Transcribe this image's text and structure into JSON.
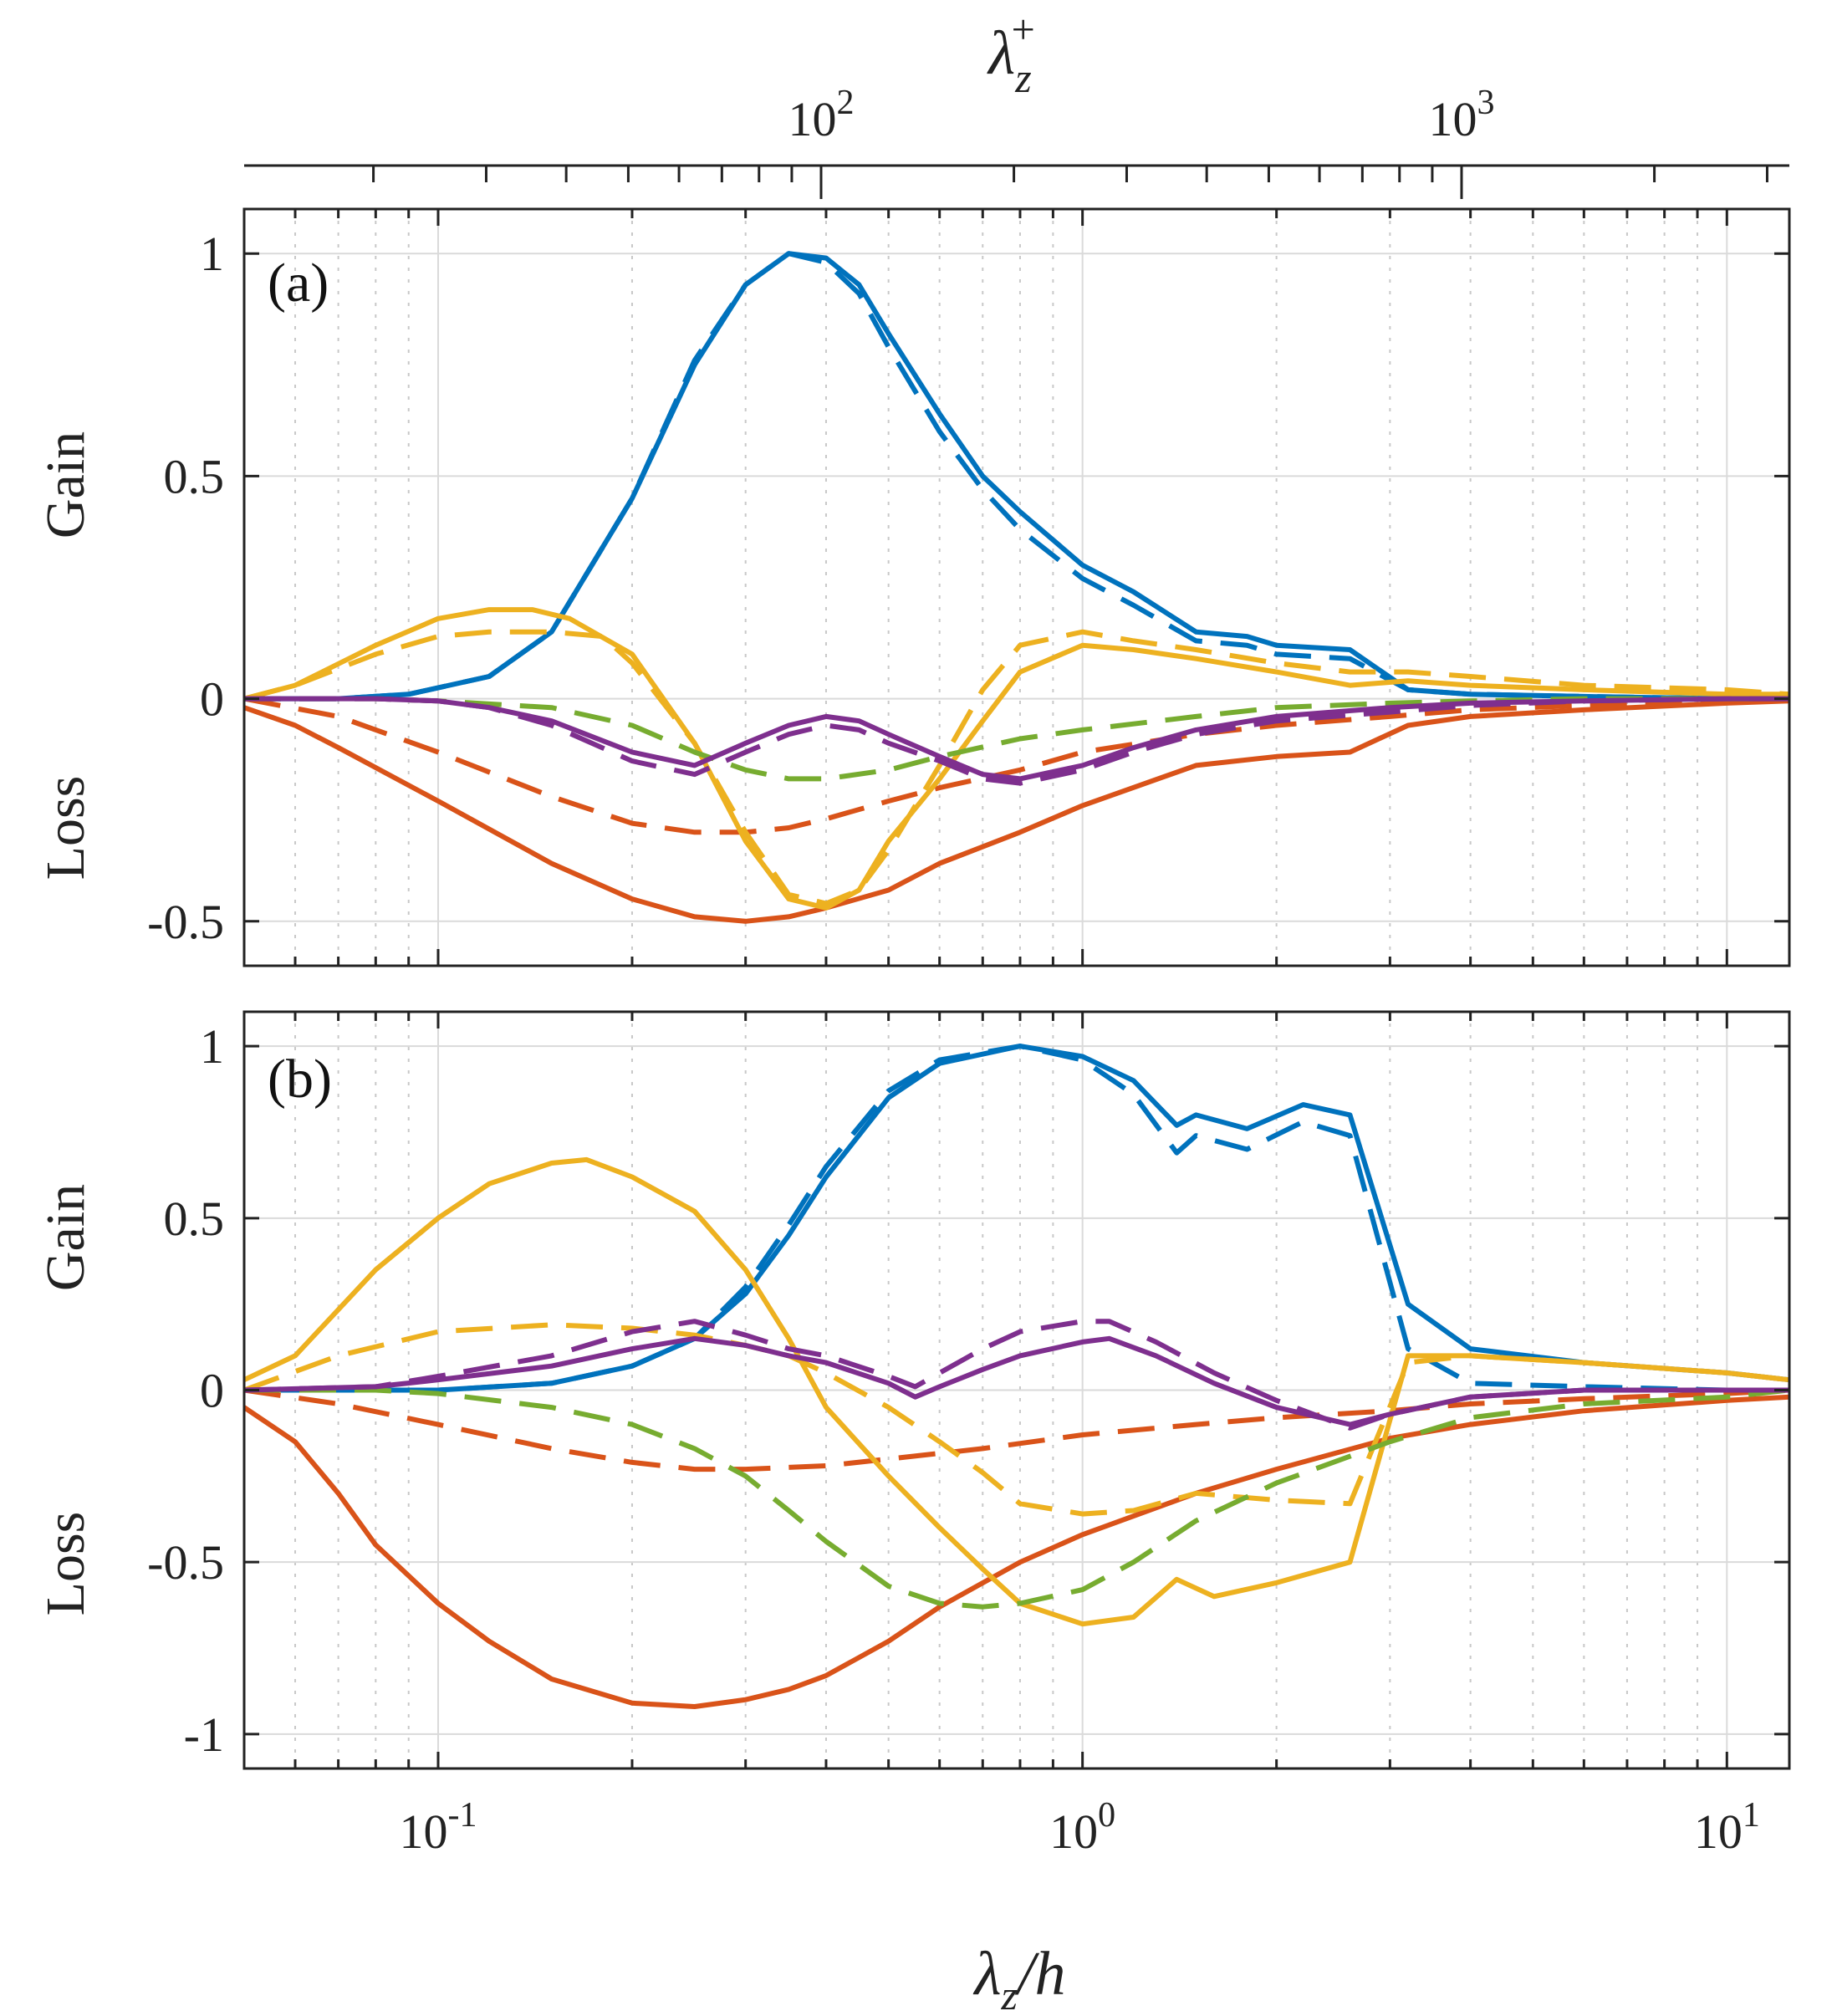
{
  "figure": {
    "top_axis_title": "λz+",
    "bottom_axis_title": "λz/h",
    "gain_label": "Gain",
    "loss_label": "Loss"
  },
  "chart_data": [
    {
      "type": "line",
      "panel_label": "(a)",
      "xscale": "log",
      "xlim": [
        0.05,
        12.5
      ],
      "ylim": [
        -0.6,
        1.1
      ],
      "yticks": [
        -0.5,
        0,
        0.5,
        1
      ],
      "ytick_labels": [
        "-0.5",
        "0",
        "0.5",
        "1"
      ],
      "xticks": [
        0.1,
        1,
        10
      ],
      "xtick_labels": [
        "10-1",
        "100",
        "101"
      ],
      "top_xticks_plus": [
        100,
        1000
      ],
      "top_xtick_labels": [
        "102",
        "103"
      ],
      "grid": true,
      "series": [
        {
          "name": "blue-solid",
          "color": "#0072BD",
          "dash": "solid",
          "x": [
            0.05,
            0.07,
            0.09,
            0.12,
            0.15,
            0.2,
            0.25,
            0.3,
            0.35,
            0.4,
            0.45,
            0.5,
            0.6,
            0.7,
            0.8,
            1.0,
            1.2,
            1.5,
            1.8,
            2.0,
            2.6,
            3.2,
            4,
            6,
            10,
            12.5
          ],
          "y": [
            0,
            0,
            0.01,
            0.05,
            0.15,
            0.45,
            0.75,
            0.93,
            1.0,
            0.99,
            0.93,
            0.82,
            0.64,
            0.5,
            0.42,
            0.3,
            0.24,
            0.15,
            0.14,
            0.12,
            0.11,
            0.02,
            0.01,
            0.005,
            0,
            0
          ]
        },
        {
          "name": "blue-dashed",
          "color": "#0072BD",
          "dash": "dashed",
          "x": [
            0.05,
            0.07,
            0.09,
            0.12,
            0.15,
            0.2,
            0.25,
            0.3,
            0.35,
            0.4,
            0.45,
            0.5,
            0.6,
            0.7,
            0.8,
            1.0,
            1.2,
            1.5,
            1.8,
            2.0,
            2.6,
            3.2,
            4,
            6,
            10,
            12.5
          ],
          "y": [
            0,
            0,
            0.01,
            0.05,
            0.15,
            0.45,
            0.76,
            0.93,
            1.0,
            0.98,
            0.91,
            0.79,
            0.6,
            0.47,
            0.38,
            0.27,
            0.21,
            0.13,
            0.12,
            0.1,
            0.09,
            0.02,
            0.01,
            0.005,
            0,
            0
          ]
        },
        {
          "name": "red-solid",
          "color": "#D95319",
          "dash": "solid",
          "x": [
            0.05,
            0.06,
            0.07,
            0.1,
            0.15,
            0.2,
            0.25,
            0.3,
            0.35,
            0.4,
            0.5,
            0.6,
            0.8,
            1.0,
            1.5,
            2.0,
            2.6,
            3.2,
            4,
            6,
            10,
            12.5
          ],
          "y": [
            -0.02,
            -0.06,
            -0.11,
            -0.23,
            -0.37,
            -0.45,
            -0.49,
            -0.5,
            -0.49,
            -0.47,
            -0.43,
            -0.37,
            -0.3,
            -0.24,
            -0.15,
            -0.13,
            -0.12,
            -0.06,
            -0.04,
            -0.025,
            -0.01,
            -0.005
          ]
        },
        {
          "name": "red-dashed",
          "color": "#D95319",
          "dash": "dashed",
          "x": [
            0.05,
            0.07,
            0.1,
            0.15,
            0.2,
            0.25,
            0.3,
            0.35,
            0.4,
            0.5,
            0.6,
            0.8,
            1.0,
            1.5,
            2.0,
            3.0,
            4,
            6,
            10,
            12.5
          ],
          "y": [
            0,
            -0.04,
            -0.12,
            -0.22,
            -0.28,
            -0.3,
            -0.3,
            -0.29,
            -0.27,
            -0.23,
            -0.2,
            -0.16,
            -0.12,
            -0.08,
            -0.06,
            -0.04,
            -0.025,
            -0.015,
            -0.005,
            0
          ]
        },
        {
          "name": "yellow-solid",
          "color": "#EDB120",
          "dash": "solid",
          "x": [
            0.05,
            0.06,
            0.08,
            0.1,
            0.12,
            0.14,
            0.16,
            0.2,
            0.25,
            0.3,
            0.35,
            0.4,
            0.45,
            0.5,
            0.6,
            0.7,
            0.8,
            1.0,
            1.2,
            1.5,
            2.0,
            2.6,
            3.2,
            4,
            6,
            10,
            12.5
          ],
          "y": [
            0,
            0.03,
            0.12,
            0.18,
            0.2,
            0.2,
            0.18,
            0.1,
            -0.1,
            -0.32,
            -0.45,
            -0.47,
            -0.43,
            -0.32,
            -0.18,
            -0.05,
            0.06,
            0.12,
            0.11,
            0.09,
            0.06,
            0.03,
            0.04,
            0.03,
            0.02,
            0.01,
            0.01
          ]
        },
        {
          "name": "yellow-dashed",
          "color": "#EDB120",
          "dash": "dashed",
          "x": [
            0.05,
            0.06,
            0.08,
            0.1,
            0.12,
            0.15,
            0.18,
            0.2,
            0.25,
            0.3,
            0.35,
            0.4,
            0.45,
            0.5,
            0.6,
            0.7,
            0.8,
            1.0,
            1.2,
            1.5,
            2.0,
            2.6,
            3.2,
            4,
            6,
            10,
            12.5
          ],
          "y": [
            0,
            0.03,
            0.1,
            0.14,
            0.15,
            0.15,
            0.14,
            0.08,
            -0.1,
            -0.3,
            -0.44,
            -0.46,
            -0.43,
            -0.34,
            -0.15,
            0.02,
            0.12,
            0.15,
            0.13,
            0.11,
            0.08,
            0.06,
            0.06,
            0.05,
            0.03,
            0.02,
            0.01
          ]
        },
        {
          "name": "green-dashed",
          "color": "#77AC30",
          "dash": "dashed",
          "x": [
            0.05,
            0.08,
            0.1,
            0.15,
            0.2,
            0.25,
            0.3,
            0.35,
            0.4,
            0.5,
            0.6,
            0.8,
            1.0,
            1.5,
            2.0,
            3.0,
            4,
            6,
            10,
            12.5
          ],
          "y": [
            0,
            0,
            -0.005,
            -0.02,
            -0.06,
            -0.12,
            -0.16,
            -0.18,
            -0.18,
            -0.16,
            -0.13,
            -0.09,
            -0.07,
            -0.04,
            -0.02,
            -0.01,
            -0.005,
            0,
            0,
            0
          ]
        },
        {
          "name": "purple-solid",
          "color": "#7E2F8E",
          "dash": "solid",
          "x": [
            0.05,
            0.08,
            0.1,
            0.12,
            0.15,
            0.2,
            0.25,
            0.3,
            0.35,
            0.4,
            0.45,
            0.5,
            0.6,
            0.7,
            0.8,
            1.0,
            1.2,
            1.5,
            2.0,
            3.0,
            4,
            6,
            10,
            12.5
          ],
          "y": [
            0,
            0,
            -0.005,
            -0.02,
            -0.05,
            -0.12,
            -0.15,
            -0.1,
            -0.06,
            -0.04,
            -0.05,
            -0.08,
            -0.13,
            -0.17,
            -0.18,
            -0.15,
            -0.11,
            -0.07,
            -0.04,
            -0.02,
            -0.01,
            -0.005,
            0,
            0
          ]
        },
        {
          "name": "purple-dashed",
          "color": "#7E2F8E",
          "dash": "dashed",
          "x": [
            0.05,
            0.08,
            0.1,
            0.12,
            0.15,
            0.2,
            0.25,
            0.3,
            0.35,
            0.4,
            0.45,
            0.5,
            0.6,
            0.7,
            0.8,
            1.0,
            1.2,
            1.5,
            2.0,
            3.0,
            4,
            6,
            10,
            12.5
          ],
          "y": [
            0,
            0,
            -0.005,
            -0.02,
            -0.06,
            -0.14,
            -0.17,
            -0.12,
            -0.08,
            -0.06,
            -0.07,
            -0.1,
            -0.14,
            -0.18,
            -0.19,
            -0.16,
            -0.12,
            -0.08,
            -0.05,
            -0.03,
            -0.015,
            -0.005,
            0,
            0
          ]
        }
      ]
    },
    {
      "type": "line",
      "panel_label": "(b)",
      "xscale": "log",
      "xlim": [
        0.05,
        12.5
      ],
      "ylim": [
        -1.1,
        1.1
      ],
      "yticks": [
        -1,
        -0.5,
        0,
        0.5,
        1
      ],
      "ytick_labels": [
        "-1",
        "-0.5",
        "0",
        "0.5",
        "1"
      ],
      "xticks": [
        0.1,
        1,
        10
      ],
      "xtick_labels": [
        "10-1",
        "100",
        "101"
      ],
      "grid": true,
      "series": [
        {
          "name": "blue-solid",
          "color": "#0072BD",
          "dash": "solid",
          "x": [
            0.05,
            0.08,
            0.1,
            0.15,
            0.2,
            0.25,
            0.3,
            0.35,
            0.4,
            0.5,
            0.6,
            0.8,
            1.0,
            1.2,
            1.4,
            1.5,
            1.8,
            2.2,
            2.6,
            3.2,
            4,
            6,
            10,
            12.5
          ],
          "y": [
            0,
            0,
            0,
            0.02,
            0.07,
            0.15,
            0.28,
            0.45,
            0.62,
            0.85,
            0.95,
            1.0,
            0.97,
            0.9,
            0.77,
            0.8,
            0.76,
            0.83,
            0.8,
            0.25,
            0.12,
            0.08,
            0.05,
            0.03
          ]
        },
        {
          "name": "blue-dashed",
          "color": "#0072BD",
          "dash": "dashed",
          "x": [
            0.05,
            0.08,
            0.1,
            0.15,
            0.2,
            0.25,
            0.3,
            0.35,
            0.4,
            0.5,
            0.6,
            0.8,
            1.0,
            1.2,
            1.4,
            1.5,
            1.8,
            2.2,
            2.6,
            3.2,
            4,
            6,
            10,
            12.5
          ],
          "y": [
            0,
            0,
            0,
            0.02,
            0.07,
            0.15,
            0.3,
            0.48,
            0.65,
            0.87,
            0.96,
            1.0,
            0.96,
            0.86,
            0.69,
            0.74,
            0.7,
            0.78,
            0.74,
            0.12,
            0.02,
            0.01,
            0,
            0
          ]
        },
        {
          "name": "red-solid",
          "color": "#D95319",
          "dash": "solid",
          "x": [
            0.05,
            0.06,
            0.07,
            0.08,
            0.1,
            0.12,
            0.15,
            0.2,
            0.25,
            0.3,
            0.35,
            0.4,
            0.5,
            0.6,
            0.8,
            1.0,
            1.5,
            2.0,
            3.0,
            4,
            6,
            10,
            12.5
          ],
          "y": [
            -0.05,
            -0.15,
            -0.3,
            -0.45,
            -0.62,
            -0.73,
            -0.84,
            -0.91,
            -0.92,
            -0.9,
            -0.87,
            -0.83,
            -0.73,
            -0.63,
            -0.5,
            -0.42,
            -0.3,
            -0.23,
            -0.14,
            -0.1,
            -0.06,
            -0.03,
            -0.02
          ]
        },
        {
          "name": "red-dashed",
          "color": "#D95319",
          "dash": "dashed",
          "x": [
            0.05,
            0.07,
            0.1,
            0.15,
            0.2,
            0.25,
            0.3,
            0.4,
            0.5,
            0.7,
            1.0,
            1.5,
            2.0,
            3.0,
            4,
            6,
            10,
            12.5
          ],
          "y": [
            0,
            -0.04,
            -0.1,
            -0.17,
            -0.21,
            -0.23,
            -0.23,
            -0.22,
            -0.2,
            -0.17,
            -0.13,
            -0.1,
            -0.08,
            -0.06,
            -0.04,
            -0.025,
            -0.01,
            0
          ]
        },
        {
          "name": "yellow-solid",
          "color": "#EDB120",
          "dash": "solid",
          "x": [
            0.05,
            0.06,
            0.08,
            0.1,
            0.12,
            0.15,
            0.17,
            0.2,
            0.25,
            0.3,
            0.35,
            0.4,
            0.5,
            0.6,
            0.7,
            0.8,
            1.0,
            1.2,
            1.4,
            1.6,
            2.0,
            2.6,
            3.2,
            4,
            6,
            10,
            12.5
          ],
          "y": [
            0.03,
            0.1,
            0.35,
            0.5,
            0.6,
            0.66,
            0.67,
            0.62,
            0.52,
            0.35,
            0.15,
            -0.05,
            -0.25,
            -0.4,
            -0.52,
            -0.62,
            -0.68,
            -0.66,
            -0.55,
            -0.6,
            -0.56,
            -0.5,
            0.1,
            0.1,
            0.08,
            0.05,
            0.03
          ]
        },
        {
          "name": "yellow-dashed",
          "color": "#EDB120",
          "dash": "dashed",
          "x": [
            0.05,
            0.07,
            0.1,
            0.15,
            0.2,
            0.25,
            0.3,
            0.35,
            0.4,
            0.5,
            0.6,
            0.7,
            0.8,
            1.0,
            1.2,
            1.5,
            2.0,
            2.6,
            3.2,
            4,
            6,
            10,
            12.5
          ],
          "y": [
            0,
            0.1,
            0.17,
            0.19,
            0.18,
            0.16,
            0.13,
            0.1,
            0.05,
            -0.05,
            -0.15,
            -0.24,
            -0.33,
            -0.36,
            -0.35,
            -0.3,
            -0.32,
            -0.33,
            0.08,
            0.1,
            0.08,
            0.05,
            0.03
          ]
        },
        {
          "name": "green-dashed",
          "color": "#77AC30",
          "dash": "dashed",
          "x": [
            0.05,
            0.08,
            0.1,
            0.15,
            0.2,
            0.25,
            0.3,
            0.35,
            0.4,
            0.5,
            0.6,
            0.7,
            0.8,
            1.0,
            1.2,
            1.5,
            2.0,
            3.0,
            4,
            6,
            10,
            12.5
          ],
          "y": [
            0,
            0,
            -0.01,
            -0.05,
            -0.1,
            -0.17,
            -0.25,
            -0.35,
            -0.44,
            -0.57,
            -0.62,
            -0.63,
            -0.62,
            -0.58,
            -0.5,
            -0.38,
            -0.27,
            -0.15,
            -0.08,
            -0.04,
            -0.02,
            0
          ]
        },
        {
          "name": "purple-solid",
          "color": "#7E2F8E",
          "dash": "solid",
          "x": [
            0.05,
            0.08,
            0.1,
            0.15,
            0.2,
            0.25,
            0.3,
            0.35,
            0.4,
            0.5,
            0.55,
            0.6,
            0.7,
            0.8,
            1.0,
            1.1,
            1.3,
            1.6,
            2.0,
            2.6,
            3.0,
            4,
            6,
            10,
            12.5
          ],
          "y": [
            0,
            0.01,
            0.03,
            0.07,
            0.12,
            0.15,
            0.13,
            0.1,
            0.08,
            0.02,
            -0.02,
            0.01,
            0.06,
            0.1,
            0.14,
            0.15,
            0.1,
            0.02,
            -0.05,
            -0.1,
            -0.07,
            -0.02,
            0,
            0,
            0
          ]
        },
        {
          "name": "purple-dashed",
          "color": "#7E2F8E",
          "dash": "dashed",
          "x": [
            0.05,
            0.08,
            0.1,
            0.15,
            0.2,
            0.25,
            0.3,
            0.35,
            0.4,
            0.5,
            0.55,
            0.6,
            0.7,
            0.8,
            1.0,
            1.1,
            1.3,
            1.6,
            2.0,
            2.6,
            3.0,
            4,
            6,
            10,
            12.5
          ],
          "y": [
            0,
            0.01,
            0.04,
            0.1,
            0.17,
            0.2,
            0.16,
            0.12,
            0.1,
            0.04,
            0.01,
            0.05,
            0.12,
            0.17,
            0.2,
            0.2,
            0.14,
            0.05,
            -0.03,
            -0.11,
            -0.07,
            -0.02,
            0,
            0,
            0
          ]
        }
      ]
    }
  ]
}
